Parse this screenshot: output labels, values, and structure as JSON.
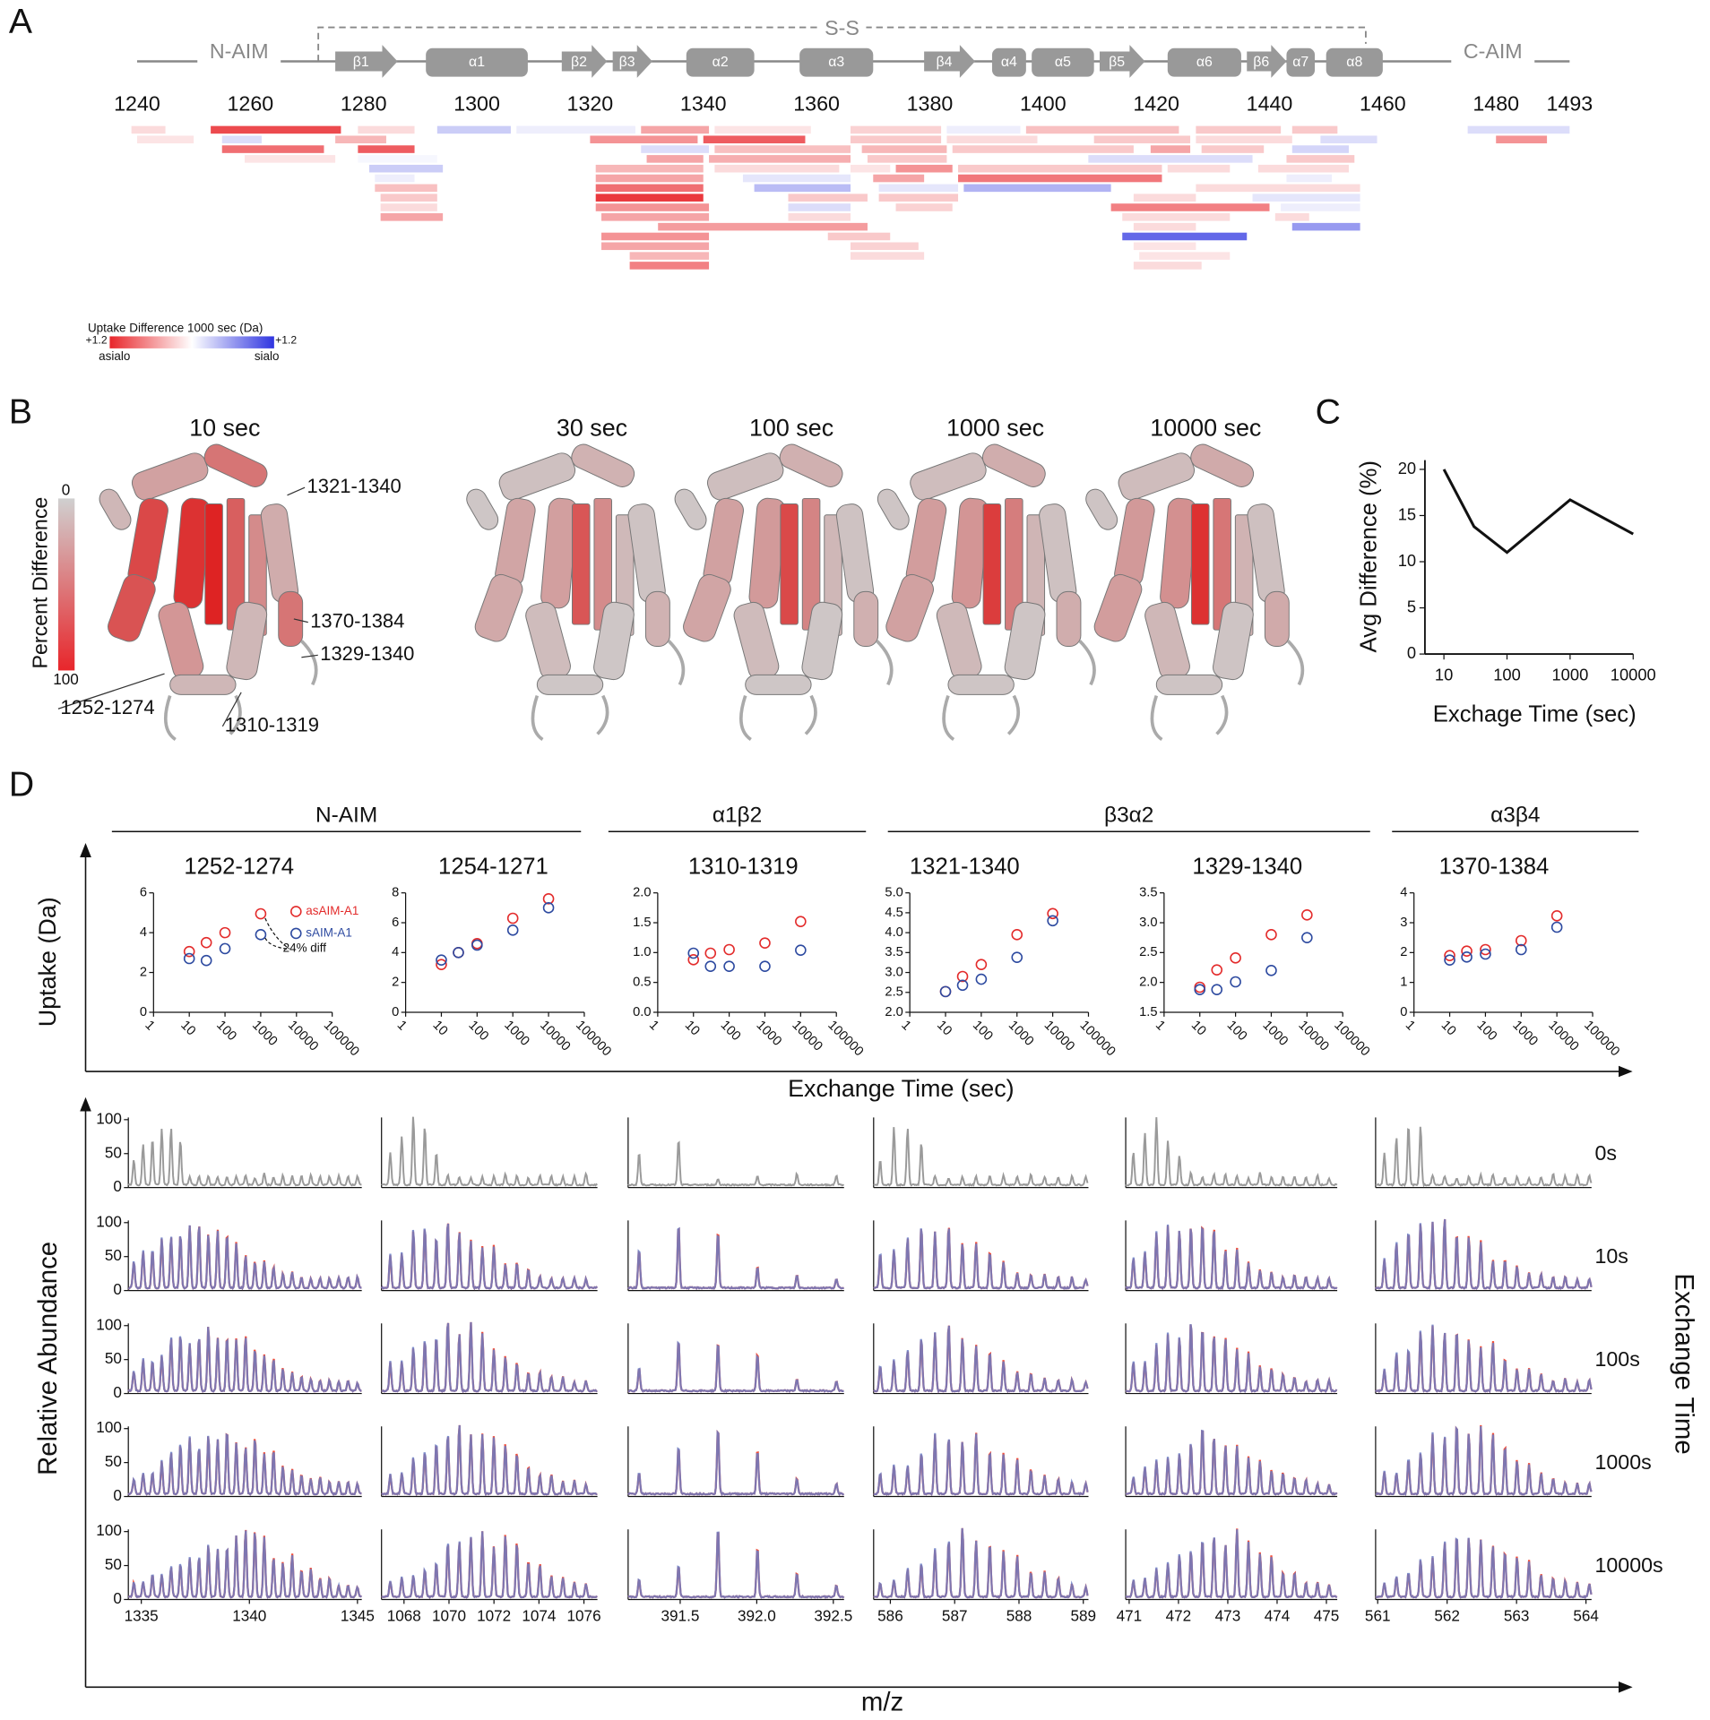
{
  "panel_labels": [
    "A",
    "B",
    "C",
    "D"
  ],
  "chart_data": [
    {
      "type": "peptide-map",
      "domains": {
        "n_terminal": "N-AIM",
        "c_terminal": "C-AIM",
        "disulfide": "S-S"
      },
      "disulfide_span": [
        1272,
        1457
      ],
      "xlim": [
        1240,
        1493
      ],
      "xticks": [
        1240,
        1260,
        1280,
        1300,
        1320,
        1340,
        1360,
        1380,
        1400,
        1420,
        1440,
        1460,
        1480,
        1493
      ],
      "elements": [
        {
          "name": "β1",
          "start": 1275,
          "end": 1286,
          "kind": "strand"
        },
        {
          "name": "α1",
          "start": 1291,
          "end": 1309,
          "kind": "helix"
        },
        {
          "name": "β2",
          "start": 1315,
          "end": 1323,
          "kind": "strand"
        },
        {
          "name": "β3",
          "start": 1324,
          "end": 1331,
          "kind": "strand"
        },
        {
          "name": "α2",
          "start": 1337,
          "end": 1349,
          "kind": "helix"
        },
        {
          "name": "α3",
          "start": 1357,
          "end": 1370,
          "kind": "helix"
        },
        {
          "name": "β4",
          "start": 1379,
          "end": 1388,
          "kind": "strand"
        },
        {
          "name": "α4",
          "start": 1391,
          "end": 1397,
          "kind": "helix"
        },
        {
          "name": "α5",
          "start": 1398,
          "end": 1409,
          "kind": "helix"
        },
        {
          "name": "β5",
          "start": 1410,
          "end": 1418,
          "kind": "strand"
        },
        {
          "name": "α6",
          "start": 1422,
          "end": 1435,
          "kind": "helix"
        },
        {
          "name": "β6",
          "start": 1436,
          "end": 1443,
          "kind": "strand"
        },
        {
          "name": "α7",
          "start": 1443,
          "end": 1448,
          "kind": "helix"
        },
        {
          "name": "α8",
          "start": 1450,
          "end": 1460,
          "kind": "helix"
        }
      ],
      "peptides": [
        {
          "start": 1239,
          "end": 1245,
          "diff": 0.2
        },
        {
          "start": 1253,
          "end": 1276,
          "diff": 1.0
        },
        {
          "start": 1279,
          "end": 1289,
          "diff": 0.2
        },
        {
          "start": 1293,
          "end": 1306,
          "diff": -0.3
        },
        {
          "start": 1307,
          "end": 1328,
          "diff": -0.1
        },
        {
          "start": 1329,
          "end": 1341,
          "diff": 0.5
        },
        {
          "start": 1342,
          "end": 1359,
          "diff": 0.15
        },
        {
          "start": 1366,
          "end": 1382,
          "diff": 0.25
        },
        {
          "start": 1383,
          "end": 1396,
          "diff": -0.1
        },
        {
          "start": 1397,
          "end": 1424,
          "diff": 0.35
        },
        {
          "start": 1444,
          "end": 1452,
          "diff": 0.3
        },
        {
          "start": 1475,
          "end": 1493,
          "diff": -0.2
        },
        {
          "start": 1240,
          "end": 1250,
          "diff": 0.15
        },
        {
          "start": 1275,
          "end": 1284,
          "diff": 0.4
        },
        {
          "start": 1320,
          "end": 1339,
          "diff": 0.6
        },
        {
          "start": 1340,
          "end": 1358,
          "diff": 0.9
        },
        {
          "start": 1480,
          "end": 1489,
          "diff": 0.6
        },
        {
          "start": 1279,
          "end": 1289,
          "diff": 0.9
        },
        {
          "start": 1329,
          "end": 1341,
          "diff": -0.2
        },
        {
          "start": 1366,
          "end": 1382,
          "diff": 0.3
        },
        {
          "start": 1383,
          "end": 1399,
          "diff": 0.2
        },
        {
          "start": 1427,
          "end": 1444,
          "diff": 0.2
        },
        {
          "start": 1255,
          "end": 1262,
          "diff": -0.2
        },
        {
          "start": 1330,
          "end": 1340,
          "diff": 0.5
        },
        {
          "start": 1341,
          "end": 1366,
          "diff": 0.45
        },
        {
          "start": 1368,
          "end": 1383,
          "diff": 0.4
        },
        {
          "start": 1384,
          "end": 1416,
          "diff": 0.3
        },
        {
          "start": 1444,
          "end": 1454,
          "diff": -0.25
        },
        {
          "start": 1255,
          "end": 1273,
          "diff": 0.8
        },
        {
          "start": 1279,
          "end": 1293,
          "diff": -0.05
        },
        {
          "start": 1321,
          "end": 1340,
          "diff": 0.4
        },
        {
          "start": 1342,
          "end": 1366,
          "diff": 0.35
        },
        {
          "start": 1443,
          "end": 1455,
          "diff": 0.3
        },
        {
          "start": 1259,
          "end": 1275,
          "diff": 0.15
        },
        {
          "start": 1321,
          "end": 1340,
          "diff": 0.5
        },
        {
          "start": 1408,
          "end": 1437,
          "diff": -0.2
        },
        {
          "start": 1438,
          "end": 1454,
          "diff": 0.2
        },
        {
          "start": 1321,
          "end": 1340,
          "diff": 0.8
        },
        {
          "start": 1342,
          "end": 1364,
          "diff": 0.2
        },
        {
          "start": 1409,
          "end": 1426,
          "diff": 0.3
        },
        {
          "start": 1321,
          "end": 1340,
          "diff": 1.1
        },
        {
          "start": 1347,
          "end": 1366,
          "diff": -0.15
        },
        {
          "start": 1385,
          "end": 1421,
          "diff": 0.3
        },
        {
          "start": 1427,
          "end": 1442,
          "diff": 0.3
        },
        {
          "start": 1443,
          "end": 1451,
          "diff": -0.1
        },
        {
          "start": 1281,
          "end": 1294,
          "diff": -0.3
        },
        {
          "start": 1321,
          "end": 1341,
          "diff": 0.6
        },
        {
          "start": 1349,
          "end": 1366,
          "diff": -0.4
        },
        {
          "start": 1385,
          "end": 1421,
          "diff": 0.75
        },
        {
          "start": 1427,
          "end": 1456,
          "diff": 0.2
        },
        {
          "start": 1282,
          "end": 1289,
          "diff": -0.1
        },
        {
          "start": 1322,
          "end": 1341,
          "diff": 0.5
        },
        {
          "start": 1332,
          "end": 1369,
          "diff": 0.55
        },
        {
          "start": 1386,
          "end": 1412,
          "diff": -0.45
        },
        {
          "start": 1416,
          "end": 1427,
          "diff": 0.2
        },
        {
          "start": 1437,
          "end": 1456,
          "diff": -0.15
        },
        {
          "start": 1282,
          "end": 1293,
          "diff": 0.35
        },
        {
          "start": 1322,
          "end": 1341,
          "diff": 0.6
        },
        {
          "start": 1369,
          "end": 1383,
          "diff": 0.3
        },
        {
          "start": 1428,
          "end": 1439,
          "diff": 0.3
        },
        {
          "start": 1322,
          "end": 1341,
          "diff": 0.5
        },
        {
          "start": 1366,
          "end": 1373,
          "diff": 0.15
        },
        {
          "start": 1355,
          "end": 1369,
          "diff": 0.3
        },
        {
          "start": 1412,
          "end": 1440,
          "diff": 0.7
        },
        {
          "start": 1442,
          "end": 1456,
          "diff": -0.1
        },
        {
          "start": 1283,
          "end": 1293,
          "diff": 0.3
        },
        {
          "start": 1327,
          "end": 1341,
          "diff": 0.4
        },
        {
          "start": 1355,
          "end": 1366,
          "diff": -0.2
        },
        {
          "start": 1414,
          "end": 1433,
          "diff": 0.2
        },
        {
          "start": 1283,
          "end": 1293,
          "diff": 0.2
        },
        {
          "start": 1355,
          "end": 1366,
          "diff": 0.2
        },
        {
          "start": 1441,
          "end": 1447,
          "diff": 0.2
        },
        {
          "start": 1283,
          "end": 1294,
          "diff": 0.5
        },
        {
          "start": 1327,
          "end": 1341,
          "diff": 0.7
        },
        {
          "start": 1362,
          "end": 1373,
          "diff": 0.3
        },
        {
          "start": 1444,
          "end": 1456,
          "diff": -0.6
        },
        {
          "start": 1366,
          "end": 1378,
          "diff": 0.25
        },
        {
          "start": 1416,
          "end": 1427,
          "diff": 0.2
        },
        {
          "start": 1366,
          "end": 1379,
          "diff": 0.2
        },
        {
          "start": 1449,
          "end": 1459,
          "diff": -0.2
        },
        {
          "start": 1370,
          "end": 1379,
          "diff": 0.5
        },
        {
          "start": 1414,
          "end": 1436,
          "diff": -0.9
        },
        {
          "start": 1416,
          "end": 1427,
          "diff": 0.15
        },
        {
          "start": 1371,
          "end": 1385,
          "diff": -0.15
        },
        {
          "start": 1417,
          "end": 1433,
          "diff": 0.15
        },
        {
          "start": 1374,
          "end": 1384,
          "diff": 0.6
        },
        {
          "start": 1416,
          "end": 1428,
          "diff": 0.2
        },
        {
          "start": 1371,
          "end": 1385,
          "diff": 0.3
        },
        {
          "start": 1419,
          "end": 1426,
          "diff": 0.5
        },
        {
          "start": 1374,
          "end": 1384,
          "diff": 0.25
        },
        {
          "start": 1422,
          "end": 1433,
          "diff": 0.2
        }
      ],
      "colorbar": {
        "title": "Uptake Difference 1000 sec (Da)",
        "limit": 1.2,
        "limit_labels": [
          "+1.2",
          "+1.2"
        ],
        "end_names": [
          "asialo",
          "sialo"
        ]
      },
      "positive_color": "#e8262b",
      "negative_color": "#2f35e0"
    },
    {
      "type": "structure-series",
      "titles": [
        "10 sec",
        "30 sec",
        "100 sec",
        "1000 sec",
        "10000 sec"
      ],
      "colorbar_label": "Percent Difference",
      "colorbar_ticks": [
        0,
        100
      ],
      "annotations": [
        "1321-1340",
        "1370-1384",
        "1329-1340",
        "1252-1274",
        "1310-1319"
      ]
    },
    {
      "type": "line",
      "xlabel": "Exchage Time (sec)",
      "ylabel": "Avg Difference (%)",
      "x": [
        10,
        30,
        100,
        1000,
        10000
      ],
      "values": [
        20,
        13.8,
        11,
        16.7,
        13
      ],
      "color": "#111111",
      "xscale": "log",
      "xlim": [
        5,
        10000
      ],
      "xticks": [
        10,
        100,
        1000,
        10000
      ],
      "ylim": [
        0,
        21
      ],
      "yticks": [
        0,
        5,
        10,
        15,
        20
      ]
    },
    {
      "type": "scatter",
      "title": "1252-1274",
      "x": [
        10,
        30,
        100,
        1000
      ],
      "series": [
        {
          "name": "asAIM-A1",
          "color": "#e32b2b",
          "values": [
            3.05,
            3.5,
            4.0,
            4.95
          ]
        },
        {
          "name": "sAIM-A1",
          "color": "#2d4aa0",
          "values": [
            2.7,
            2.6,
            3.2,
            3.9
          ]
        }
      ],
      "annotation": "24% diff",
      "xscale": "log",
      "xlim": [
        1,
        100000
      ],
      "xticks": [
        1,
        10,
        100,
        1000,
        10000,
        100000
      ],
      "ylim": [
        0,
        6
      ],
      "yticks": [
        0,
        2,
        4,
        6
      ]
    },
    {
      "type": "scatter",
      "title": "1254-1271",
      "x": [
        10,
        30,
        100,
        1000,
        10000
      ],
      "series": [
        {
          "color": "#e32b2b",
          "values": [
            3.2,
            4.0,
            4.6,
            6.3,
            7.6
          ]
        },
        {
          "color": "#2d4aa0",
          "values": [
            3.5,
            4.0,
            4.5,
            5.5,
            7.0
          ]
        }
      ],
      "xscale": "log",
      "xlim": [
        1,
        100000
      ],
      "xticks": [
        1,
        10,
        100,
        1000,
        10000,
        100000
      ],
      "ylim": [
        0,
        8
      ],
      "yticks": [
        0,
        2,
        4,
        6,
        8
      ]
    },
    {
      "type": "scatter",
      "title": "1310-1319",
      "x": [
        10,
        30,
        100,
        1000,
        10000
      ],
      "series": [
        {
          "color": "#e32b2b",
          "values": [
            0.88,
            0.99,
            1.05,
            1.16,
            1.52
          ]
        },
        {
          "color": "#2d4aa0",
          "values": [
            0.99,
            0.77,
            0.77,
            0.77,
            1.04
          ]
        }
      ],
      "xscale": "log",
      "xlim": [
        1,
        100000
      ],
      "xticks": [
        1,
        10,
        100,
        1000,
        10000,
        100000
      ],
      "ylim": [
        0,
        2
      ],
      "yticks": [
        {
          "value": 0,
          "label": "0.0"
        },
        0.5,
        {
          "value": 1,
          "label": "1.0"
        },
        1.5,
        {
          "value": 2,
          "label": "2.0"
        }
      ]
    },
    {
      "type": "scatter",
      "title": "1321-1340",
      "x": [
        10,
        30,
        100,
        1000,
        10000
      ],
      "series": [
        {
          "color": "#e32b2b",
          "values": [
            2.52,
            2.9,
            3.2,
            3.95,
            4.48
          ]
        },
        {
          "color": "#2d4aa0",
          "values": [
            2.52,
            2.68,
            2.83,
            3.38,
            4.3
          ]
        }
      ],
      "xscale": "log",
      "xlim": [
        1,
        100000
      ],
      "xticks": [
        1,
        10,
        100,
        1000,
        10000,
        100000
      ],
      "ylim": [
        2,
        5
      ],
      "yticks": [
        {
          "value": 2,
          "label": "2.0"
        },
        2.5,
        {
          "value": 3,
          "label": "3.0"
        },
        3.5,
        {
          "value": 4,
          "label": "4.0"
        },
        4.5,
        {
          "value": 5,
          "label": "5.0"
        }
      ]
    },
    {
      "type": "scatter",
      "title": "1329-1340",
      "x": [
        10,
        30,
        100,
        1000,
        10000
      ],
      "series": [
        {
          "color": "#e32b2b",
          "values": [
            1.92,
            2.21,
            2.41,
            2.8,
            3.13
          ]
        },
        {
          "color": "#2d4aa0",
          "values": [
            1.88,
            1.88,
            2.01,
            2.2,
            2.75
          ]
        }
      ],
      "xscale": "log",
      "xlim": [
        1,
        100000
      ],
      "xticks": [
        1,
        10,
        100,
        1000,
        10000,
        100000
      ],
      "ylim": [
        1.5,
        3.5
      ],
      "yticks": [
        1.5,
        {
          "value": 2,
          "label": "2.0"
        },
        2.5,
        {
          "value": 3,
          "label": "3.0"
        },
        3.5
      ]
    },
    {
      "type": "scatter",
      "title": "1370-1384",
      "x": [
        10,
        30,
        100,
        1000,
        10000
      ],
      "series": [
        {
          "color": "#e32b2b",
          "values": [
            1.9,
            2.05,
            2.1,
            2.4,
            3.23
          ]
        },
        {
          "color": "#2d4aa0",
          "values": [
            1.75,
            1.85,
            1.95,
            2.1,
            2.85
          ]
        }
      ],
      "xscale": "log",
      "xlim": [
        1,
        100000
      ],
      "xticks": [
        1,
        10,
        100,
        1000,
        10000,
        100000
      ],
      "ylim": [
        0,
        4
      ],
      "yticks": [
        0,
        1,
        2,
        3,
        4
      ]
    },
    {
      "type": "spectra",
      "ylabel": "Relative Abundance",
      "xlabel": "m/z",
      "time_axis_label": "Exchange Time",
      "times": [
        "0s",
        "10s",
        "100s",
        "1000s",
        "10000s"
      ],
      "ylim": [
        0,
        100
      ],
      "yticks": [
        0,
        50,
        100
      ],
      "colors": {
        "reference": "#9a9a9a",
        "asialo": "#f2503c",
        "sialo": "#6a7cc4"
      },
      "columns": [
        {
          "xlim": [
            1334.4,
            1345.2
          ],
          "xticks": [
            1335,
            1340,
            1345
          ]
        },
        {
          "xlim": [
            1067,
            1076.6
          ],
          "xticks": [
            1068,
            1070,
            1072,
            1074,
            1076
          ]
        },
        {
          "xlim": [
            391.16,
            392.57
          ],
          "xticks": [
            391.5,
            {
              "value": 392,
              "label": "392.0"
            },
            392.5
          ]
        },
        {
          "xlim": [
            585.74,
            589.08
          ],
          "xticks": [
            586,
            587,
            588,
            589
          ]
        },
        {
          "xlim": [
            470.93,
            475.22
          ],
          "xticks": [
            471,
            472,
            473,
            474,
            475
          ]
        },
        {
          "xlim": [
            560.97,
            564.08
          ],
          "xticks": [
            561,
            562,
            563,
            564
          ]
        }
      ]
    }
  ],
  "panel_d": {
    "groups": [
      "N-AIM",
      "α1β2",
      "β3α2",
      "α3β4"
    ],
    "uptake_ylabel": "Uptake (Da)",
    "uptake_xlabel": "Exchange Time (sec)"
  }
}
